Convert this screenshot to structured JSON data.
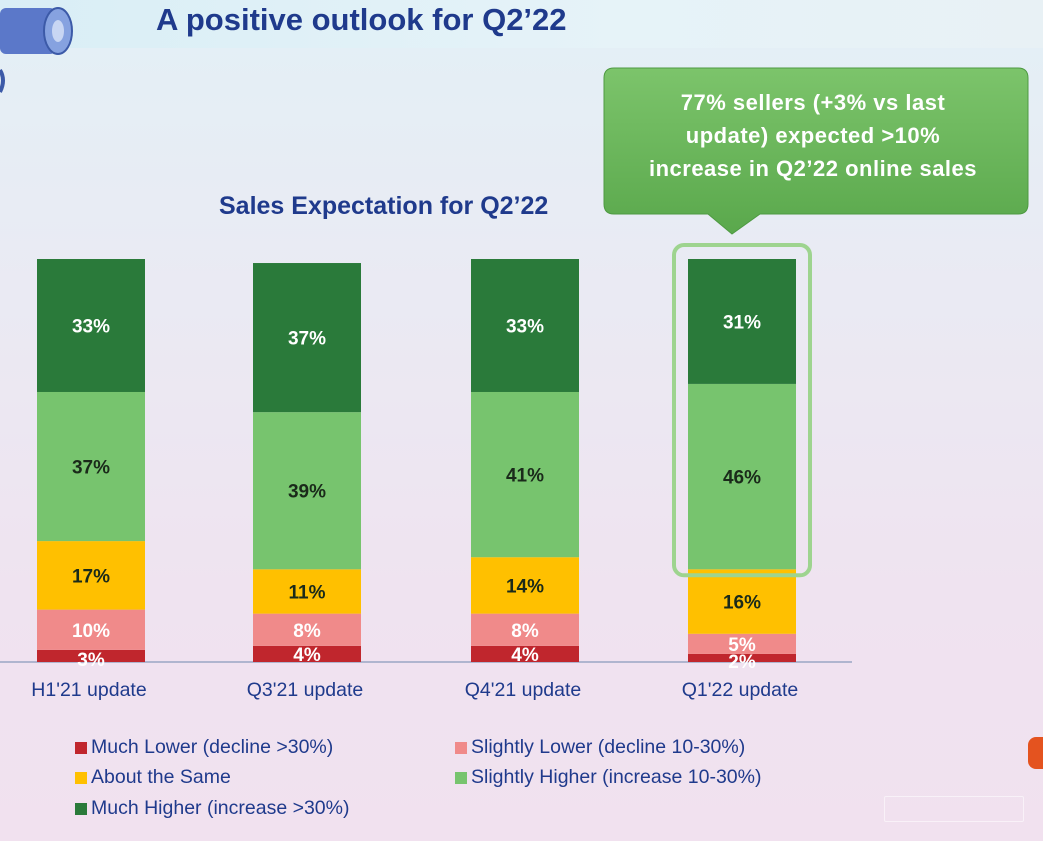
{
  "page": {
    "title": "A positive outlook for Q2’22"
  },
  "callout": {
    "line1": "77% sellers (+3% vs last",
    "line2": "update) expected >10%",
    "line3": "increase in Q2’22 online sales"
  },
  "colors": {
    "title": "#1f3a8c",
    "much_lower": "#c0262d",
    "slightly_lower": "#f08a8a",
    "about_same": "#ffc000",
    "slightly_higher": "#77c46e",
    "much_higher": "#2a7a3a",
    "callout_fill": "#6db85c",
    "highlight": "#9ed48f"
  },
  "chart_data": {
    "type": "bar",
    "stacked": true,
    "percent_stacked": true,
    "title": "Sales Expectation for Q2’22",
    "categories": [
      "H1'21 update",
      "Q3'21 update",
      "Q4'21 update",
      "Q1'22 update"
    ],
    "series": [
      {
        "name": "Much Lower (decline >30%)",
        "values": [
          3,
          4,
          4,
          2
        ],
        "color": "#c0262d"
      },
      {
        "name": "Slightly Lower (decline 10-30%)",
        "values": [
          10,
          8,
          8,
          5
        ],
        "color": "#f08a8a"
      },
      {
        "name": "About the Same",
        "values": [
          17,
          11,
          14,
          16
        ],
        "color": "#ffc000"
      },
      {
        "name": "Slightly Higher (increase 10-30%)",
        "values": [
          37,
          39,
          41,
          46
        ],
        "color": "#77c46e"
      },
      {
        "name": "Much Higher (increase >30%)",
        "values": [
          33,
          37,
          33,
          31
        ],
        "color": "#2a7a3a"
      }
    ],
    "data_labels": [
      [
        "3%",
        "10%",
        "17%",
        "37%",
        "33%"
      ],
      [
        "4%",
        "8%",
        "11%",
        "39%",
        "37%"
      ],
      [
        "4%",
        "8%",
        "14%",
        "41%",
        "33%"
      ],
      [
        "2%",
        "5%",
        "16%",
        "46%",
        "31%"
      ]
    ],
    "highlighted_category": "Q1'22 update",
    "legend": "bottom"
  }
}
